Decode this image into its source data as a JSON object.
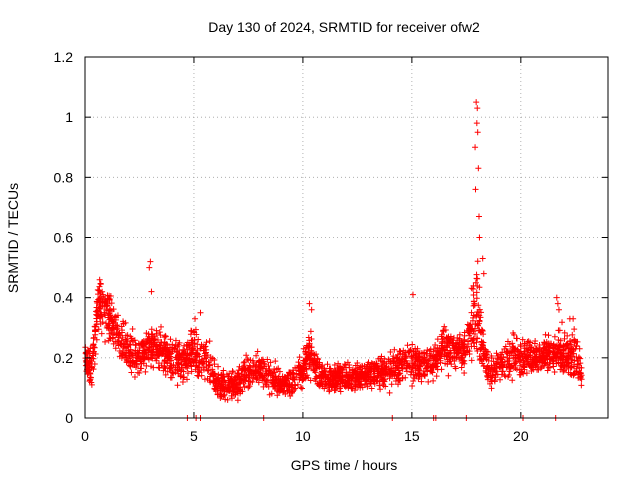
{
  "chart_data": {
    "type": "scatter",
    "title": "Day 130 of 2024, SRMTID for receiver ofw2",
    "xlabel": "GPS time / hours",
    "ylabel": "SRMTID / TECUs",
    "xlim": [
      0,
      24
    ],
    "ylim": [
      0,
      1.2
    ],
    "x_ticks": [
      0,
      5,
      10,
      15,
      20
    ],
    "x_tick_labels": [
      "0",
      "5",
      "10",
      "15",
      "20"
    ],
    "y_ticks": [
      0,
      0.2,
      0.4,
      0.6,
      0.8,
      1.0,
      1.2
    ],
    "y_tick_labels": [
      "0",
      "0.2",
      "0.4",
      "0.6",
      "0.8",
      "1",
      "1.2"
    ],
    "grid": true,
    "marker": "plus",
    "color": "#ff0000",
    "profile": {
      "x": [
        0.0,
        0.3,
        0.6,
        1.0,
        1.5,
        2.0,
        2.5,
        3.0,
        3.5,
        4.0,
        4.5,
        5.0,
        5.5,
        6.0,
        6.5,
        7.0,
        7.5,
        8.0,
        8.5,
        9.0,
        9.5,
        10.0,
        10.3,
        10.7,
        11.0,
        12.0,
        13.0,
        14.0,
        14.5,
        15.0,
        15.5,
        16.0,
        16.5,
        17.0,
        17.5,
        17.8,
        18.0,
        18.3,
        18.6,
        19.0,
        19.5,
        20.0,
        20.5,
        21.0,
        21.5,
        22.0,
        22.5,
        22.8
      ],
      "y": [
        0.2,
        0.17,
        0.38,
        0.35,
        0.28,
        0.22,
        0.2,
        0.24,
        0.22,
        0.2,
        0.18,
        0.22,
        0.2,
        0.12,
        0.1,
        0.12,
        0.15,
        0.16,
        0.14,
        0.11,
        0.12,
        0.16,
        0.22,
        0.15,
        0.13,
        0.13,
        0.14,
        0.16,
        0.18,
        0.19,
        0.18,
        0.18,
        0.24,
        0.23,
        0.22,
        0.35,
        0.4,
        0.2,
        0.15,
        0.18,
        0.2,
        0.2,
        0.2,
        0.21,
        0.22,
        0.22,
        0.2,
        0.14
      ],
      "spread": [
        0.06,
        0.06,
        0.08,
        0.08,
        0.07,
        0.06,
        0.06,
        0.07,
        0.06,
        0.06,
        0.06,
        0.07,
        0.07,
        0.05,
        0.04,
        0.05,
        0.05,
        0.05,
        0.05,
        0.04,
        0.04,
        0.05,
        0.07,
        0.05,
        0.04,
        0.04,
        0.04,
        0.05,
        0.06,
        0.06,
        0.05,
        0.05,
        0.06,
        0.06,
        0.06,
        0.1,
        0.18,
        0.08,
        0.05,
        0.05,
        0.06,
        0.06,
        0.05,
        0.05,
        0.06,
        0.07,
        0.07,
        0.05
      ],
      "count": 2800
    },
    "notable_points": {
      "x": [
        2.95,
        3.0,
        3.05,
        5.05,
        5.3,
        10.3,
        10.4,
        15.05,
        17.95,
        18.0,
        17.98,
        18.02,
        17.9,
        18.05,
        17.92,
        18.08,
        18.1,
        18.25,
        18.3,
        21.65,
        21.7,
        21.75,
        22.25,
        22.4
      ],
      "y": [
        0.5,
        0.52,
        0.42,
        0.33,
        0.35,
        0.38,
        0.36,
        0.41,
        1.05,
        1.03,
        0.98,
        0.95,
        0.9,
        0.83,
        0.76,
        0.67,
        0.6,
        0.53,
        0.48,
        0.4,
        0.38,
        0.36,
        0.33,
        0.33
      ]
    },
    "zero_markers_x": [
      4.7,
      5.1,
      5.3,
      8.2,
      14.1,
      16.0,
      16.1,
      17.5,
      20.1,
      21.6
    ]
  }
}
